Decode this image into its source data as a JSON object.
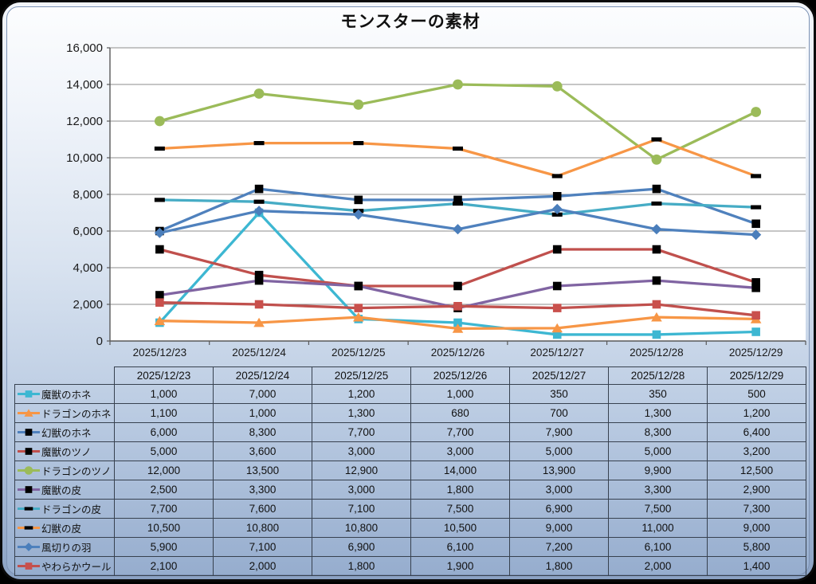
{
  "chart_data": {
    "type": "line",
    "title": "モンスターの素材",
    "categories": [
      "2025/12/23",
      "2025/12/24",
      "2025/12/25",
      "2025/12/26",
      "2025/12/27",
      "2025/12/28",
      "2025/12/29"
    ],
    "series": [
      {
        "name": "魔獣のホネ",
        "color": "#3DB7D2",
        "marker": "square",
        "marker_color": "#3DB7D2",
        "values": [
          1000,
          7000,
          1200,
          1000,
          350,
          350,
          500
        ]
      },
      {
        "name": "ドラゴンのホネ",
        "color": "#F79646",
        "marker": "triangle",
        "marker_color": "#F79646",
        "values": [
          1100,
          1000,
          1300,
          680,
          700,
          1300,
          1200
        ]
      },
      {
        "name": "幻獣のホネ",
        "color": "#4F81BD",
        "marker": "square",
        "marker_color": "#000000",
        "values": [
          6000,
          8300,
          7700,
          7700,
          7900,
          8300,
          6400
        ]
      },
      {
        "name": "魔獣のツノ",
        "color": "#C0504D",
        "marker": "square",
        "marker_color": "#000000",
        "values": [
          5000,
          3600,
          3000,
          3000,
          5000,
          5000,
          3200
        ]
      },
      {
        "name": "ドラゴンのツノ",
        "color": "#9BBB59",
        "marker": "circle",
        "marker_color": "#9BBB59",
        "values": [
          12000,
          13500,
          12900,
          14000,
          13900,
          9900,
          12500
        ]
      },
      {
        "name": "魔獣の皮",
        "color": "#8064A2",
        "marker": "square",
        "marker_color": "#000000",
        "values": [
          2500,
          3300,
          3000,
          1800,
          3000,
          3300,
          2900
        ]
      },
      {
        "name": "ドラゴンの皮",
        "color": "#46ACC5",
        "marker": "dash",
        "marker_color": "#000000",
        "values": [
          7700,
          7600,
          7100,
          7500,
          6900,
          7500,
          7300
        ]
      },
      {
        "name": "幻獣の皮",
        "color": "#F79646",
        "marker": "dash",
        "marker_color": "#000000",
        "values": [
          10500,
          10800,
          10800,
          10500,
          9000,
          11000,
          9000
        ]
      },
      {
        "name": "風切りの羽",
        "color": "#4F81BD",
        "marker": "diamond",
        "marker_color": "#4A7EBB",
        "values": [
          5900,
          7100,
          6900,
          6100,
          7200,
          6100,
          5800
        ]
      },
      {
        "name": "やわらかウール",
        "color": "#C0504D",
        "marker": "square",
        "marker_color": "#C9504C",
        "values": [
          2100,
          2000,
          1800,
          1900,
          1800,
          2000,
          1400
        ]
      }
    ],
    "ylim": [
      0,
      16000
    ],
    "yticks": [
      0,
      2000,
      4000,
      6000,
      8000,
      10000,
      12000,
      14000,
      16000
    ],
    "grid": true,
    "legend_position": "table-left",
    "plot_bg": "#FFFFFF",
    "gridline_color": "#8C8C8C",
    "axis_color": "#595959",
    "text_color": "#1A1A1A"
  }
}
